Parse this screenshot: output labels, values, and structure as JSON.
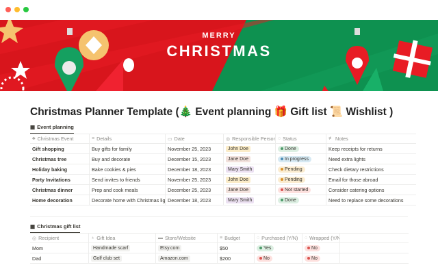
{
  "window": {
    "dots": [
      "#ff5f57",
      "#febc2e",
      "#28c840"
    ]
  },
  "banner": {
    "line1": "MERRY",
    "line2": "CHRISTMAS",
    "colors": {
      "red": "#d8151c",
      "green": "#0e9150"
    }
  },
  "title": "Christmas Planner Template (🎄 Event planning 🎁 Gift list 📜 Wishlist )",
  "event_table": {
    "tab": "Event planning",
    "columns": [
      {
        "label": "Christmas Event",
        "icon": "tree-icon"
      },
      {
        "label": "Details",
        "icon": "text-icon"
      },
      {
        "label": "Date",
        "icon": "calendar-icon"
      },
      {
        "label": "Responsible Person",
        "icon": "person-icon"
      },
      {
        "label": "Status",
        "icon": "status-icon"
      },
      {
        "label": "Notes",
        "icon": "notes-icon"
      }
    ],
    "rows": [
      {
        "event": "Gift shopping",
        "details": "Buy gifts for family",
        "date": "November 25, 2023",
        "person": "John Doe",
        "status": "Done",
        "notes": "Keep receipts for returns"
      },
      {
        "event": "Christmas tree",
        "details": "Buy and decorate",
        "date": "December 15, 2023",
        "person": "Jane Doe",
        "status": "In progress",
        "notes": "Need extra lights"
      },
      {
        "event": "Holiday baking",
        "details": "Bake cookies & pies",
        "date": "December 18, 2023",
        "person": "Mary Smith",
        "status": "Pending",
        "notes": "Check dietary restrictions"
      },
      {
        "event": "Party Invitations",
        "details": "Send invites to friends",
        "date": "November 25, 2023",
        "person": "John Doe",
        "status": "Pending",
        "notes": "Email for those abroad"
      },
      {
        "event": "Christmas dinner",
        "details": "Prep and cook meals",
        "date": "December 25, 2023",
        "person": "Jane Doe",
        "status": "Not started",
        "notes": "Consider catering options"
      },
      {
        "event": "Home decoration",
        "details": "Decorate home with Christmas lights",
        "date": "December 18, 2023",
        "person": "Mary Smith",
        "status": "Done",
        "notes": "Need to replace some decorations"
      }
    ]
  },
  "gift_table": {
    "tab": "Christmas gift list",
    "columns": [
      {
        "label": "Recipient",
        "icon": "person-icon"
      },
      {
        "label": "Gift Idea",
        "icon": "bulb-icon"
      },
      {
        "label": "Store/Website",
        "icon": "store-icon"
      },
      {
        "label": "Budget",
        "icon": "text-icon"
      },
      {
        "label": "Purchased (Y/N)",
        "icon": "status-icon"
      },
      {
        "label": "Wrapped (Y/N)",
        "icon": "status-icon"
      }
    ],
    "rows": [
      {
        "recipient": "Mom",
        "gift": "Handmade scarf",
        "store": "Etsy.com",
        "budget": "$50",
        "purchased": "Yes",
        "wrapped": "No"
      },
      {
        "recipient": "Dad",
        "gift": "Golf club set",
        "store": "Amazon.com",
        "budget": "$200",
        "purchased": "No",
        "wrapped": "No"
      }
    ]
  },
  "person_colors": {
    "John Doe": "#fbecc8",
    "Jane Doe": "#f2e1dc",
    "Mary Smith": "#ece1f2"
  },
  "status_colors": {
    "Done": [
      "#dcefe2",
      "#4d9a6a"
    ],
    "In progress": [
      "#d6e9f3",
      "#4b8cb3"
    ],
    "Pending": [
      "#fbecd0",
      "#d9912b"
    ],
    "Not started": [
      "#fde0de",
      "#d9534f"
    ],
    "Yes": [
      "#dcefe2",
      "#4d9a6a"
    ],
    "No": [
      "#fde0de",
      "#d9534f"
    ]
  }
}
